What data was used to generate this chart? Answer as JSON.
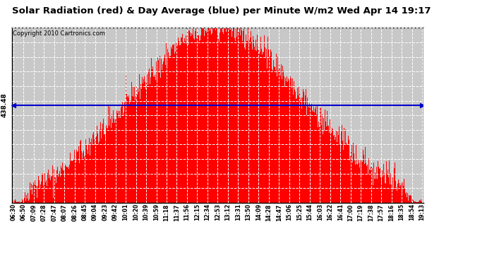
{
  "title": "Solar Radiation (red) & Day Average (blue) per Minute W/m2 Wed Apr 14 19:17",
  "copyright": "Copyright 2010 Cartronics.com",
  "avg_value": 438.48,
  "y_max": 785.0,
  "y_min": 0.0,
  "y_ticks": [
    0.0,
    65.4,
    130.8,
    196.2,
    261.7,
    327.1,
    392.5,
    457.9,
    523.3,
    588.8,
    654.2,
    719.6,
    785.0
  ],
  "x_labels": [
    "06:30",
    "06:50",
    "07:09",
    "07:28",
    "07:47",
    "08:07",
    "08:26",
    "08:45",
    "09:04",
    "09:23",
    "09:42",
    "10:01",
    "10:20",
    "10:39",
    "10:59",
    "11:18",
    "11:37",
    "11:56",
    "12:15",
    "12:34",
    "12:53",
    "13:12",
    "13:31",
    "13:50",
    "14:09",
    "14:28",
    "14:47",
    "15:06",
    "15:25",
    "15:44",
    "16:03",
    "16:22",
    "16:41",
    "17:00",
    "17:19",
    "17:38",
    "17:57",
    "18:16",
    "18:35",
    "18:54",
    "19:13"
  ],
  "bar_color": "#FF0000",
  "avg_line_color": "#0000CC",
  "bg_color": "#FFFFFF",
  "plot_bg_color": "#C8C8C8",
  "grid_color": "#FFFFFF",
  "title_color": "#000000",
  "avg_label": "438.48",
  "avg_label_fontsize": 6.5,
  "title_fontsize": 9.5,
  "copyright_fontsize": 6.0,
  "ytick_fontsize": 7.5,
  "xtick_fontsize": 5.5
}
